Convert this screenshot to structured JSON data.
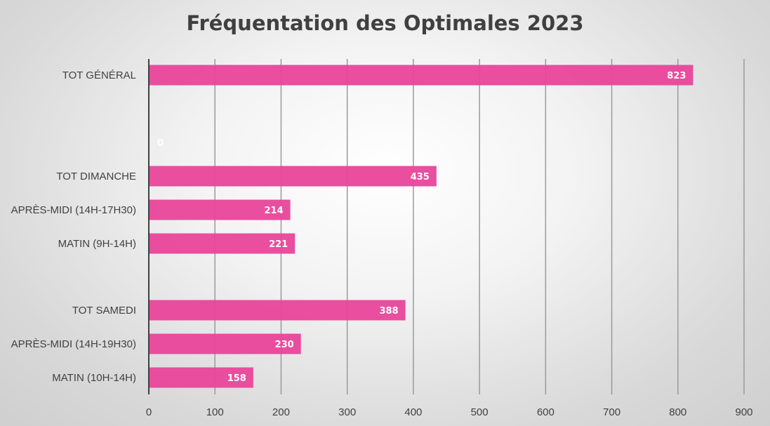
{
  "chart_data": {
    "type": "bar",
    "orientation": "horizontal",
    "title": "Fréquentation des Optimales 2023",
    "xlabel": "",
    "ylabel": "",
    "categories": [
      "TOT GÉNÉRAL",
      "",
      "TOT DIMANCHE",
      "APRÈS-MIDI (14H-17H30)",
      "MATIN (9H-14H)",
      "",
      "TOT SAMEDI",
      "APRÈS-MIDI (14H-19H30)",
      "MATIN (10H-14H)"
    ],
    "values": [
      823,
      0,
      435,
      214,
      221,
      null,
      388,
      230,
      158
    ],
    "data_labels": [
      "823",
      "0",
      "435",
      "214",
      "221",
      "",
      "388",
      "230",
      "158"
    ],
    "xlim": [
      0,
      900
    ],
    "xticks": [
      "0",
      "100",
      "200",
      "300",
      "400",
      "500",
      "600",
      "700",
      "800",
      "900"
    ],
    "grid": "vertical",
    "legend": "none",
    "bar_color": "#e8449a",
    "axis_color": "#404040"
  }
}
